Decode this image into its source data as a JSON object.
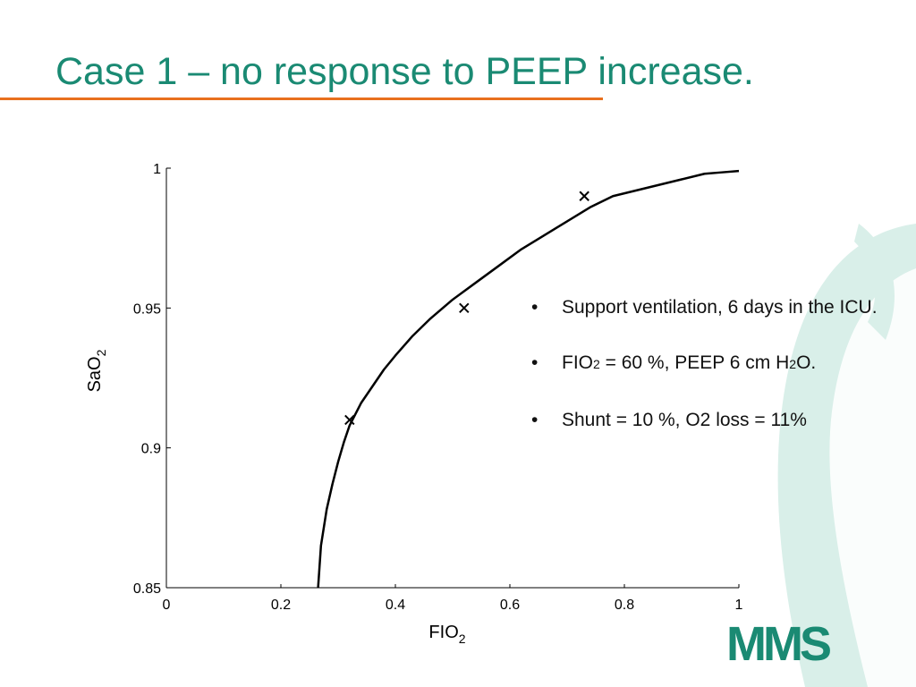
{
  "slide": {
    "title": "Case 1 – no response to PEEP increase."
  },
  "bullets": {
    "b1": "Support ventilation, 6 days in the ICU.",
    "b2_pre": "FIO",
    "b2_sub1": "2",
    "b2_mid": " = 60 %, PEEP 6 cm H",
    "b2_sub2": "2",
    "b2_post": "O.",
    "b3": "Shunt = 10 %, O2 loss  = 11%"
  },
  "logo": {
    "text": "MMS",
    "icon": "mms-logo"
  },
  "colors": {
    "title": "#1a8a73",
    "rule": "#e8701e",
    "decor": "#d9efe9",
    "logo": "#1a8a73"
  },
  "chart_data": {
    "type": "line",
    "xlabel": "FIO",
    "xlabel_sub": "2",
    "ylabel": "SaO",
    "ylabel_sub": "2",
    "xlim": [
      0,
      1
    ],
    "ylim": [
      0.85,
      1
    ],
    "xticks": [
      0,
      0.2,
      0.4,
      0.6,
      0.8,
      1
    ],
    "xtick_labels": [
      "0",
      "0.2",
      "0.4",
      "0.6",
      "0.8",
      "1"
    ],
    "yticks": [
      0.85,
      0.9,
      0.95,
      1
    ],
    "ytick_labels": [
      "0.85",
      "0.9",
      "0.95",
      "1"
    ],
    "grid": false,
    "series": [
      {
        "style": "line",
        "x": [
          0.265,
          0.27,
          0.28,
          0.29,
          0.3,
          0.31,
          0.32,
          0.34,
          0.36,
          0.38,
          0.4,
          0.43,
          0.46,
          0.5,
          0.54,
          0.58,
          0.62,
          0.66,
          0.7,
          0.74,
          0.78,
          0.82,
          0.86,
          0.9,
          0.94,
          0.97,
          1.0
        ],
        "y": [
          0.85,
          0.865,
          0.878,
          0.887,
          0.895,
          0.902,
          0.908,
          0.916,
          0.922,
          0.928,
          0.933,
          0.94,
          0.946,
          0.953,
          0.959,
          0.965,
          0.971,
          0.976,
          0.981,
          0.986,
          0.99,
          0.992,
          0.994,
          0.996,
          0.998,
          0.9985,
          0.999
        ]
      },
      {
        "style": "markers",
        "marker": "x",
        "x": [
          0.32,
          0.52,
          0.73
        ],
        "y": [
          0.91,
          0.95,
          0.99
        ]
      }
    ]
  }
}
